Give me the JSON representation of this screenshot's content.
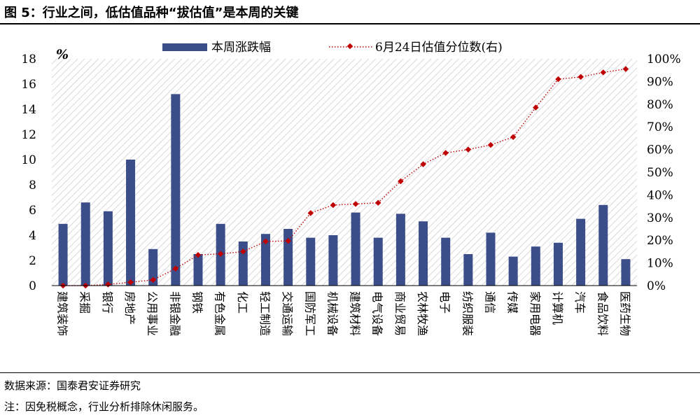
{
  "title": "图 5：行业之间，低估值品种“拔估值”是本周的关键",
  "footer": {
    "source": "数据来源：国泰君安证券研究",
    "note": "注：因免税概念，行业分析排除休闲服务。"
  },
  "colors": {
    "bar": "#3b4e8a",
    "line": "#c00000",
    "hatch": "#d9d9d9"
  },
  "chart_data": {
    "type": "bar",
    "categories": [
      "建筑装饰",
      "采掘",
      "银行",
      "房地产",
      "公用事业",
      "非银金融",
      "钢铁",
      "有色金属",
      "化工",
      "轻工制造",
      "交通运输",
      "国防军工",
      "机械设备",
      "建筑材料",
      "电气设备",
      "商业贸易",
      "农林牧渔",
      "电子",
      "纺织服装",
      "通信",
      "传媒",
      "家用电器",
      "计算机",
      "汽车",
      "食品饮料",
      "医药生物"
    ],
    "series": [
      {
        "name": "本周涨跌幅",
        "type": "bar",
        "axis": "left",
        "values": [
          4.9,
          6.6,
          5.9,
          10.0,
          2.9,
          15.2,
          2.5,
          4.9,
          3.5,
          4.1,
          4.5,
          3.8,
          4.0,
          5.8,
          3.8,
          5.7,
          5.1,
          3.8,
          2.5,
          4.2,
          2.3,
          3.1,
          3.4,
          5.3,
          6.4,
          2.1
        ]
      },
      {
        "name": "6月24日估值分位数(右)",
        "type": "line",
        "axis": "right",
        "values": [
          0.0,
          0.0,
          0.5,
          1.5,
          2.5,
          7.5,
          13.5,
          14.0,
          15.0,
          19.5,
          19.7,
          32.0,
          35.5,
          36.0,
          36.5,
          46.0,
          53.5,
          58.5,
          60.0,
          62.0,
          65.5,
          78.5,
          91.0,
          92.0,
          94.0,
          95.5
        ]
      }
    ],
    "y_left": {
      "label": "%",
      "ticks": [
        "0",
        "2",
        "4",
        "6",
        "8",
        "10",
        "12",
        "14",
        "16",
        "18"
      ],
      "range": [
        0,
        18
      ]
    },
    "y_right": {
      "ticks": [
        "0%",
        "10%",
        "20%",
        "30%",
        "40%",
        "50%",
        "60%",
        "70%",
        "80%",
        "90%",
        "100%"
      ],
      "range": [
        0,
        100
      ]
    },
    "legend": "top-center",
    "grid": false
  }
}
